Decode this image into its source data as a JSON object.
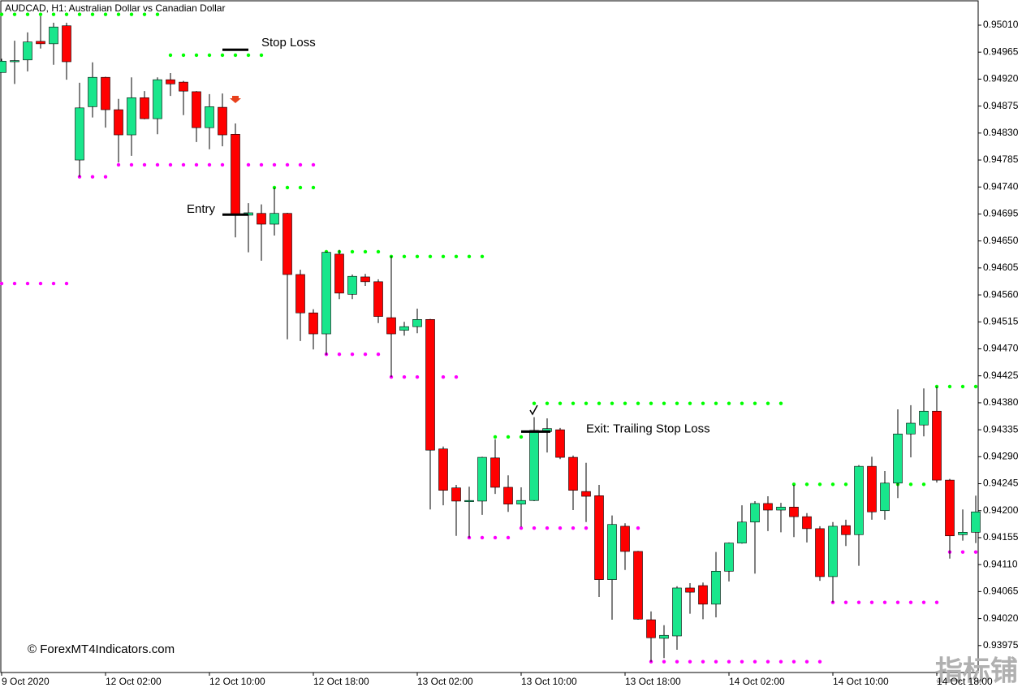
{
  "chart_data": {
    "type": "candlestick",
    "title": "AUDCAD, H1:  Australian Dollar vs Canadian Dollar",
    "watermark": "© ForexMT4Indicators.com",
    "corner_mark": "指标铺",
    "categories": [
      "9 Oct 2020",
      null,
      null,
      null,
      null,
      null,
      null,
      null,
      "12 Oct 02:00",
      null,
      null,
      null,
      null,
      null,
      null,
      null,
      "12 Oct 10:00",
      null,
      null,
      null,
      null,
      null,
      null,
      null,
      "12 Oct 18:00",
      null,
      null,
      null,
      null,
      null,
      null,
      null,
      "13 Oct 02:00",
      null,
      null,
      null,
      null,
      null,
      null,
      null,
      "13 Oct 10:00",
      null,
      null,
      null,
      null,
      null,
      null,
      null,
      "13 Oct 18:00",
      null,
      null,
      null,
      null,
      null,
      null,
      null,
      "14 Oct 02:00",
      null,
      null,
      null,
      null,
      null,
      null,
      null,
      "14 Oct 10:00",
      null,
      null,
      null,
      null,
      null,
      null,
      null,
      "14 Oct 18:00",
      null,
      null,
      null
    ],
    "open": [
      0.94931,
      0.9495,
      0.94952,
      0.94983,
      0.94979,
      0.95009,
      0.94785,
      0.94874,
      0.94923,
      0.94869,
      0.94827,
      0.94889,
      0.94854,
      0.94919,
      0.94915,
      0.94899,
      0.94839,
      0.94873,
      0.94828,
      0.94693,
      0.94696,
      0.94678,
      0.94696,
      0.94594,
      0.9453,
      0.94495,
      0.94628,
      0.94561,
      0.9459,
      0.94582,
      0.94522,
      0.94501,
      0.94507,
      0.94519,
      0.94303,
      0.94238,
      0.94216,
      0.94216,
      0.94288,
      0.94239,
      0.94211,
      0.94217,
      0.94332,
      0.94335,
      0.94289,
      0.94232,
      0.94225,
      0.94085,
      0.94174,
      0.94132,
      0.94018,
      0.93987,
      0.93991,
      0.94071,
      0.94075,
      0.94044,
      0.94099,
      0.94146,
      0.94181,
      0.94212,
      0.94201,
      0.94206,
      0.9419,
      0.9417,
      0.9409,
      0.94175,
      0.9416,
      0.94274,
      0.942,
      0.94246,
      0.94328,
      0.94343,
      0.94366,
      0.94251,
      0.9416,
      0.94164
    ],
    "high": [
      0.94954,
      0.94984,
      0.94998,
      0.95025,
      0.95014,
      0.95014,
      0.94914,
      0.94948,
      0.94924,
      0.94887,
      0.94923,
      0.949,
      0.94923,
      0.9493,
      0.94917,
      0.949,
      0.94895,
      0.94896,
      0.94846,
      0.94713,
      0.94711,
      0.94739,
      0.94697,
      0.94602,
      0.94536,
      0.94632,
      0.94635,
      0.94594,
      0.94595,
      0.94586,
      0.94625,
      0.94515,
      0.94537,
      0.9452,
      0.94307,
      0.94243,
      0.9424,
      0.9429,
      0.94319,
      0.94259,
      0.94239,
      0.94356,
      0.94354,
      0.94338,
      0.94292,
      0.9428,
      0.94243,
      0.94192,
      0.94179,
      0.94133,
      0.94032,
      0.94009,
      0.94074,
      0.94079,
      0.9408,
      0.94131,
      0.94147,
      0.94209,
      0.94216,
      0.94224,
      0.94213,
      0.94243,
      0.94196,
      0.94174,
      0.94181,
      0.94185,
      0.94276,
      0.9429,
      0.94266,
      0.94369,
      0.94376,
      0.94404,
      0.94407,
      0.94253,
      0.94202,
      0.94225
    ],
    "low": [
      0.94931,
      0.94912,
      0.94933,
      0.94971,
      0.94944,
      0.94919,
      0.94757,
      0.94856,
      0.94839,
      0.94781,
      0.94792,
      0.94853,
      0.94828,
      0.94892,
      0.9486,
      0.94815,
      0.94803,
      0.94808,
      0.94656,
      0.94631,
      0.94617,
      0.94659,
      0.94486,
      0.94483,
      0.94469,
      0.9446,
      0.94553,
      0.94553,
      0.94575,
      0.94513,
      0.94423,
      0.94492,
      0.94496,
      0.94202,
      0.94209,
      0.94158,
      0.94155,
      0.94193,
      0.94228,
      0.94198,
      0.94173,
      0.94216,
      0.94297,
      0.94286,
      0.94201,
      0.94181,
      0.94056,
      0.94018,
      0.94101,
      0.94018,
      0.93948,
      0.93954,
      0.93968,
      0.94028,
      0.94019,
      0.94022,
      0.94082,
      0.94145,
      0.94095,
      0.94166,
      0.94164,
      0.94156,
      0.94147,
      0.94083,
      0.94047,
      0.94141,
      0.94108,
      0.94185,
      0.94185,
      0.94221,
      0.94289,
      0.94324,
      0.94247,
      0.9412,
      0.9415,
      0.94146
    ],
    "close": [
      0.9495,
      0.94951,
      0.94982,
      0.94979,
      0.95007,
      0.94949,
      0.94872,
      0.94923,
      0.94869,
      0.94827,
      0.94889,
      0.94854,
      0.94919,
      0.94912,
      0.949,
      0.94839,
      0.94874,
      0.94827,
      0.94694,
      0.94697,
      0.94678,
      0.94696,
      0.94594,
      0.9453,
      0.94495,
      0.94631,
      0.94563,
      0.94591,
      0.94582,
      0.94524,
      0.94495,
      0.94507,
      0.94519,
      0.94301,
      0.94234,
      0.94216,
      0.94217,
      0.94289,
      0.94239,
      0.94211,
      0.94217,
      0.94334,
      0.94337,
      0.94289,
      0.94234,
      0.94224,
      0.94085,
      0.94177,
      0.94132,
      0.94019,
      0.93988,
      0.93992,
      0.94071,
      0.94064,
      0.94044,
      0.94099,
      0.94146,
      0.94181,
      0.94212,
      0.94201,
      0.94206,
      0.9419,
      0.9417,
      0.9409,
      0.94174,
      0.9416,
      0.94274,
      0.94198,
      0.94246,
      0.94328,
      0.94346,
      0.94366,
      0.94251,
      0.94158,
      0.94164,
      0.94198
    ],
    "up_color": "#19e68c",
    "down_color": "#ff0000",
    "wick_color": "#000000",
    "channels": [
      {
        "color": "#00ff00",
        "values": [
          0.95028,
          0.95028,
          0.95028,
          0.95028,
          0.95028,
          0.95028,
          0.95028,
          0.95028,
          0.95028,
          0.95028,
          0.95028,
          0.95028,
          0.95028,
          0.9496,
          0.9496,
          0.9496,
          0.9496,
          0.9496,
          0.9496,
          0.9496,
          0.9496,
          0.94739,
          0.94739,
          0.94739,
          0.94739,
          0.94632,
          0.94632,
          0.94632,
          0.94632,
          0.94632,
          0.94624,
          0.94624,
          0.94624,
          0.94624,
          0.94624,
          0.94624,
          0.94624,
          0.94624,
          0.94323,
          0.94323,
          0.94323,
          0.94379,
          0.94379,
          0.94379,
          0.94379,
          0.94379,
          0.94379,
          0.94379,
          0.94379,
          0.94379,
          0.94379,
          0.94379,
          0.94379,
          0.94379,
          0.94379,
          0.94379,
          0.94379,
          0.94379,
          0.94379,
          0.94379,
          0.94379,
          0.94244,
          0.94244,
          0.94244,
          0.94244,
          0.94244,
          0.94244,
          0.94244,
          0.94244,
          0.94244,
          0.94244,
          0.94244,
          0.94407,
          0.94407,
          0.94407,
          0.94407
        ]
      },
      {
        "color": "#ff00ff",
        "values": [
          0.94579,
          0.94579,
          0.94579,
          0.94579,
          0.94579,
          0.94579,
          0.94757,
          0.94757,
          0.94757,
          0.94777,
          0.94777,
          0.94777,
          0.94777,
          0.94777,
          0.94777,
          0.94777,
          0.94777,
          0.94777,
          0.94777,
          0.94777,
          0.94777,
          0.94777,
          0.94777,
          0.94777,
          0.94777,
          0.94461,
          0.94461,
          0.94461,
          0.94461,
          0.94461,
          0.94423,
          0.94423,
          0.94423,
          0.94423,
          0.94423,
          0.94423,
          0.94155,
          0.94155,
          0.94155,
          0.94155,
          0.94171,
          0.94171,
          0.94171,
          0.94171,
          0.94171,
          0.94171,
          0.94171,
          0.94171,
          0.94171,
          0.94171,
          0.93948,
          0.93948,
          0.93948,
          0.93948,
          0.93948,
          0.93948,
          0.93948,
          0.93948,
          0.93948,
          0.93948,
          0.93948,
          0.93948,
          0.93948,
          0.93948,
          0.94047,
          0.94047,
          0.94047,
          0.94047,
          0.94047,
          0.94047,
          0.94047,
          0.94047,
          0.94047,
          0.94131,
          0.94131,
          0.94131
        ]
      }
    ],
    "annotations": [
      {
        "text": "Stop Loss",
        "price": 0.94969
      },
      {
        "text": "Entry",
        "price": 0.94694
      },
      {
        "text": "Exit: Trailing Stop Loss",
        "price": 0.94332
      }
    ],
    "ylim": [
      0.9393,
      0.95052
    ],
    "yticks": [
      {
        "value": 0.9501,
        "label": "0.95010"
      },
      {
        "value": 0.94965,
        "label": "0.94965"
      },
      {
        "value": 0.9492,
        "label": "0.94920"
      },
      {
        "value": 0.94875,
        "label": "0.94875"
      },
      {
        "value": 0.9483,
        "label": "0.94830"
      },
      {
        "value": 0.94785,
        "label": "0.94785"
      },
      {
        "value": 0.9474,
        "label": "0.94740"
      },
      {
        "value": 0.94695,
        "label": "0.94695"
      },
      {
        "value": 0.9465,
        "label": "0.94650"
      },
      {
        "value": 0.94605,
        "label": "0.94605"
      },
      {
        "value": 0.9456,
        "label": "0.94560"
      },
      {
        "value": 0.94515,
        "label": "0.94515"
      },
      {
        "value": 0.9447,
        "label": "0.94470"
      },
      {
        "value": 0.94425,
        "label": "0.94425"
      },
      {
        "value": 0.9438,
        "label": "0.94380"
      },
      {
        "value": 0.94335,
        "label": "0.94335"
      },
      {
        "value": 0.9429,
        "label": "0.94290"
      },
      {
        "value": 0.94245,
        "label": "0.94245"
      },
      {
        "value": 0.942,
        "label": "0.94200"
      },
      {
        "value": 0.94155,
        "label": "0.94155"
      },
      {
        "value": 0.9411,
        "label": "0.94110"
      },
      {
        "value": 0.94065,
        "label": "0.94065"
      },
      {
        "value": 0.9402,
        "label": "0.94020"
      },
      {
        "value": 0.93975,
        "label": "0.93975"
      }
    ]
  }
}
